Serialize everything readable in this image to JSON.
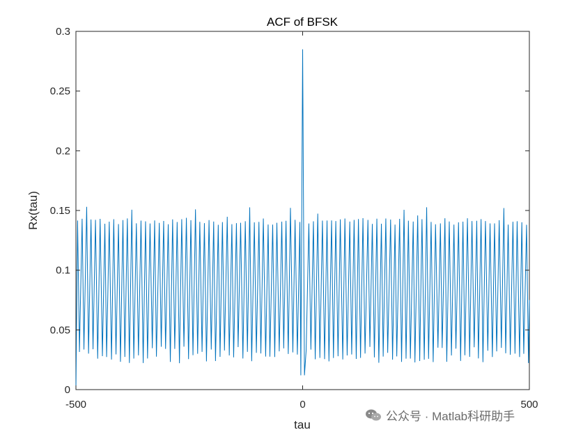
{
  "chart_data": {
    "type": "line",
    "title": "ACF of BFSK",
    "xlabel": "tau",
    "ylabel": "Rx(tau)",
    "xlim": [
      -500,
      500
    ],
    "ylim": [
      0,
      0.3
    ],
    "x_ticks": [
      "-500",
      "0",
      "500"
    ],
    "y_ticks": [
      "0",
      "0.05",
      "0.1",
      "0.15",
      "0.2",
      "0.25",
      "0.3"
    ],
    "grid": false,
    "legend": "none",
    "series": [
      {
        "color": "#0072BD",
        "approx": {
          "peak": {
            "x": 0,
            "y": 0.285
          },
          "oscillation_period_tau": 10,
          "upper_envelope_min": 0.138,
          "upper_envelope_max": 0.157,
          "lower_envelope_min": 0.022,
          "lower_envelope_max": 0.036,
          "end_value_left": 0.0,
          "end_value_right": 0.075,
          "dip_near_zero": 0.012
        }
      }
    ]
  },
  "watermark": {
    "icon": "wechat-icon",
    "text": "公众号 · Matlab科研助手"
  }
}
